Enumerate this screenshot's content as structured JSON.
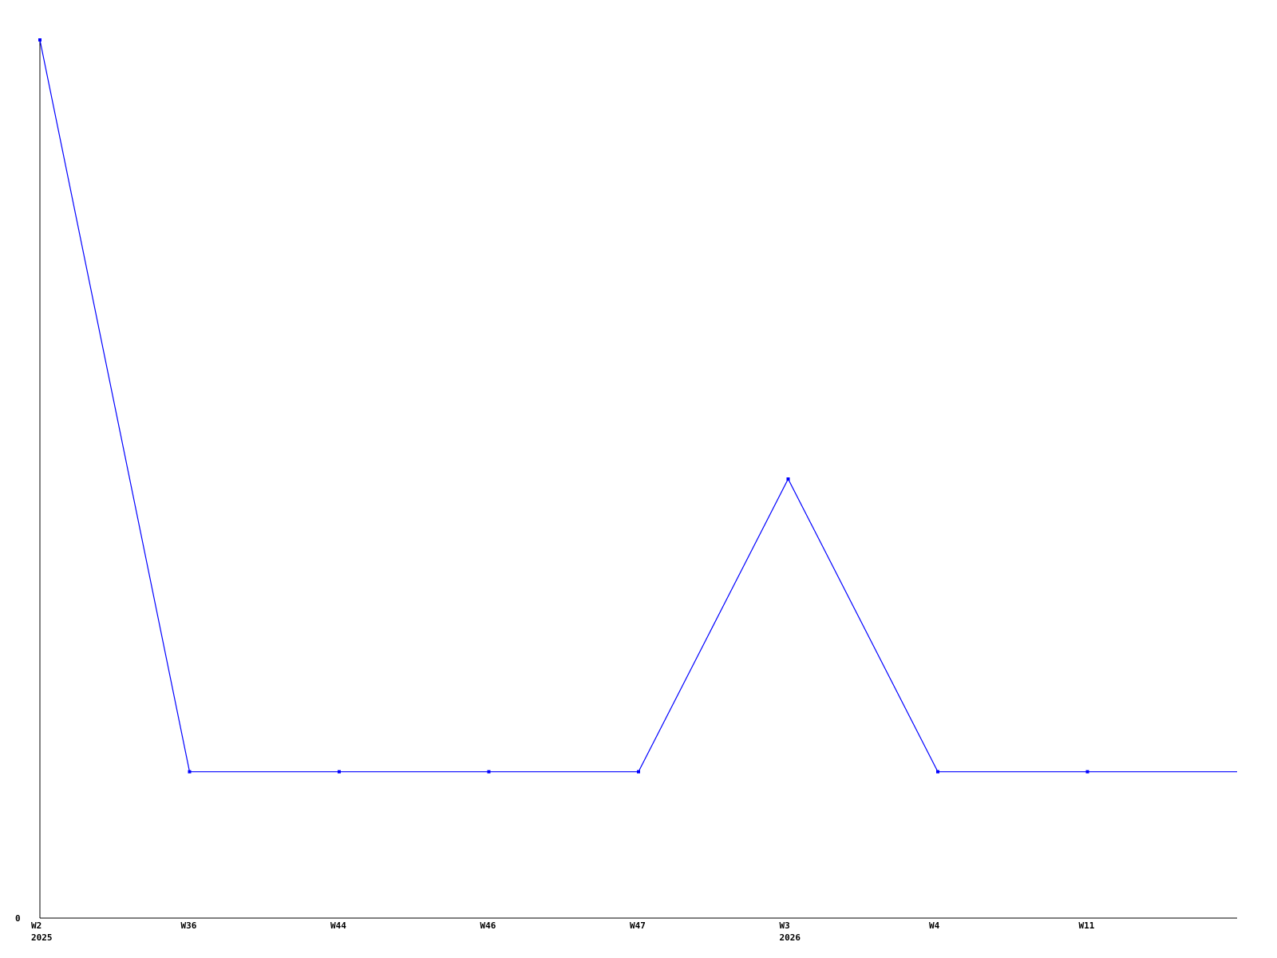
{
  "chart_data": {
    "type": "line",
    "categories": [
      "W2",
      "W36",
      "W44",
      "W46",
      "W47",
      "W3",
      "W4",
      "W11"
    ],
    "year_labels": {
      "W2": "2025",
      "W3": "2026"
    },
    "series": [
      {
        "values": [
          6,
          1,
          1,
          1,
          1,
          3,
          1,
          1
        ],
        "color": "#0000ff"
      }
    ],
    "y_tick_labels": [
      "0"
    ],
    "ylim": [
      0,
      6
    ],
    "grid": false,
    "title": "",
    "xlabel": "",
    "ylabel": ""
  }
}
